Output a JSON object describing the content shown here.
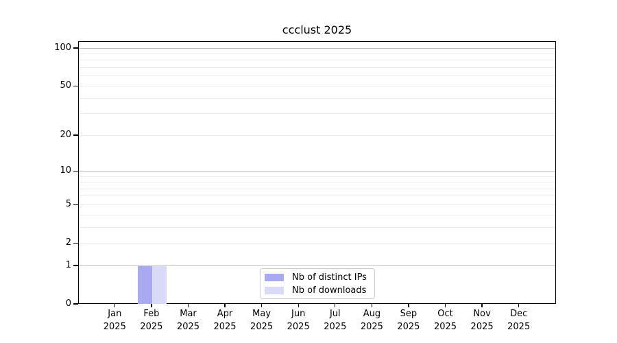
{
  "chart_data": {
    "type": "bar",
    "title": "ccclust 2025",
    "x_categories": [
      {
        "label": "Jan",
        "sub": "2025"
      },
      {
        "label": "Feb",
        "sub": "2025"
      },
      {
        "label": "Mar",
        "sub": "2025"
      },
      {
        "label": "Apr",
        "sub": "2025"
      },
      {
        "label": "May",
        "sub": "2025"
      },
      {
        "label": "Jun",
        "sub": "2025"
      },
      {
        "label": "Jul",
        "sub": "2025"
      },
      {
        "label": "Aug",
        "sub": "2025"
      },
      {
        "label": "Sep",
        "sub": "2025"
      },
      {
        "label": "Oct",
        "sub": "2025"
      },
      {
        "label": "Nov",
        "sub": "2025"
      },
      {
        "label": "Dec",
        "sub": "2025"
      }
    ],
    "series": [
      {
        "name": "Nb of distinct IPs",
        "color": "#a9a9f2",
        "values": [
          0,
          1,
          0,
          0,
          0,
          0,
          0,
          0,
          0,
          0,
          0,
          0
        ]
      },
      {
        "name": "Nb of downloads",
        "color": "#d9d9f8",
        "values": [
          0,
          1,
          0,
          0,
          0,
          0,
          0,
          0,
          0,
          0,
          0,
          0
        ]
      }
    ],
    "y_axis": {
      "scale": "log1p",
      "tick_labels": [
        0,
        1,
        2,
        5,
        10,
        20,
        50,
        100
      ],
      "major_gridlines": [
        1,
        10,
        100
      ],
      "minor_gridlines": [
        2,
        3,
        4,
        5,
        6,
        7,
        8,
        9,
        20,
        30,
        40,
        50,
        60,
        70,
        80,
        90
      ],
      "ylim": [
        0,
        115
      ]
    },
    "grid": true,
    "legend_position": "lower center"
  }
}
